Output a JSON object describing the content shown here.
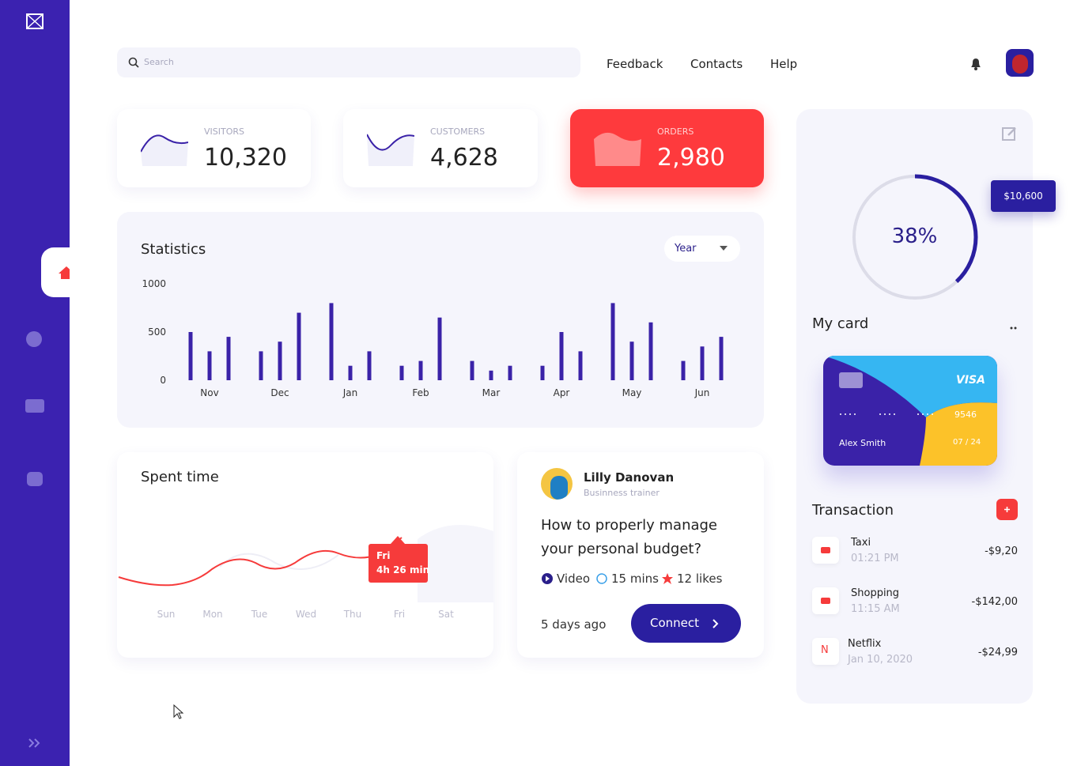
{
  "nav": {
    "search_placeholder": "Search",
    "links": [
      "Feedback",
      "Contacts",
      "Help"
    ]
  },
  "stats": [
    {
      "label": "VISITORS",
      "value": "10,320"
    },
    {
      "label": "CUSTOMERS",
      "value": "4,628"
    },
    {
      "label": "ORDERS",
      "value": "2,980"
    }
  ],
  "chart_data": {
    "type": "bar",
    "title": "Statistics",
    "period": "Year",
    "categories": [
      "Nov",
      "Dec",
      "Jan",
      "Feb",
      "Mar",
      "Apr",
      "May",
      "Jun"
    ],
    "series": [
      {
        "color": "#3a22a8",
        "values": [
          500,
          300,
          800,
          150,
          200,
          150,
          800,
          200
        ]
      },
      {
        "color": "#3a22a8",
        "values": [
          300,
          400,
          150,
          200,
          100,
          500,
          400,
          350
        ]
      },
      {
        "color": "#3a22a8",
        "values": [
          450,
          700,
          300,
          650,
          150,
          300,
          600,
          450
        ]
      }
    ],
    "ylim": [
      0,
      1000
    ],
    "yticks": [
      0,
      500,
      1000
    ]
  },
  "spent_time": {
    "title": "Spent time",
    "days": [
      "Sun",
      "Mon",
      "Tue",
      "Wed",
      "Thu",
      "Fri",
      "Sat"
    ],
    "tooltip": {
      "day": "Fri",
      "duration": "4h 26 min"
    }
  },
  "post": {
    "author": "Lilly Danovan",
    "role": "Businness trainer",
    "title": "How to properly manage your personal budget?",
    "meta": [
      "Video",
      "15 mins",
      "12 likes"
    ],
    "time": "5 days ago",
    "button": "Connect"
  },
  "card": {
    "progress": {
      "value": 38,
      "label": "38%"
    },
    "balance": "$10,600",
    "title": "My card",
    "brand": "VISA",
    "last4": "9546",
    "holder": "Alex Smith",
    "expiry": "07 / 24"
  },
  "transactions": {
    "title": "Transaction",
    "items": [
      {
        "name": "Taxi",
        "time": "01:21 PM",
        "amount": "-$9,20"
      },
      {
        "name": "Shopping",
        "time": "11:15 AM",
        "amount": "-$142,00"
      },
      {
        "name": "Netflix",
        "logo": "N",
        "time": "Jan 10, 2020",
        "amount": "-$24,99"
      }
    ]
  }
}
